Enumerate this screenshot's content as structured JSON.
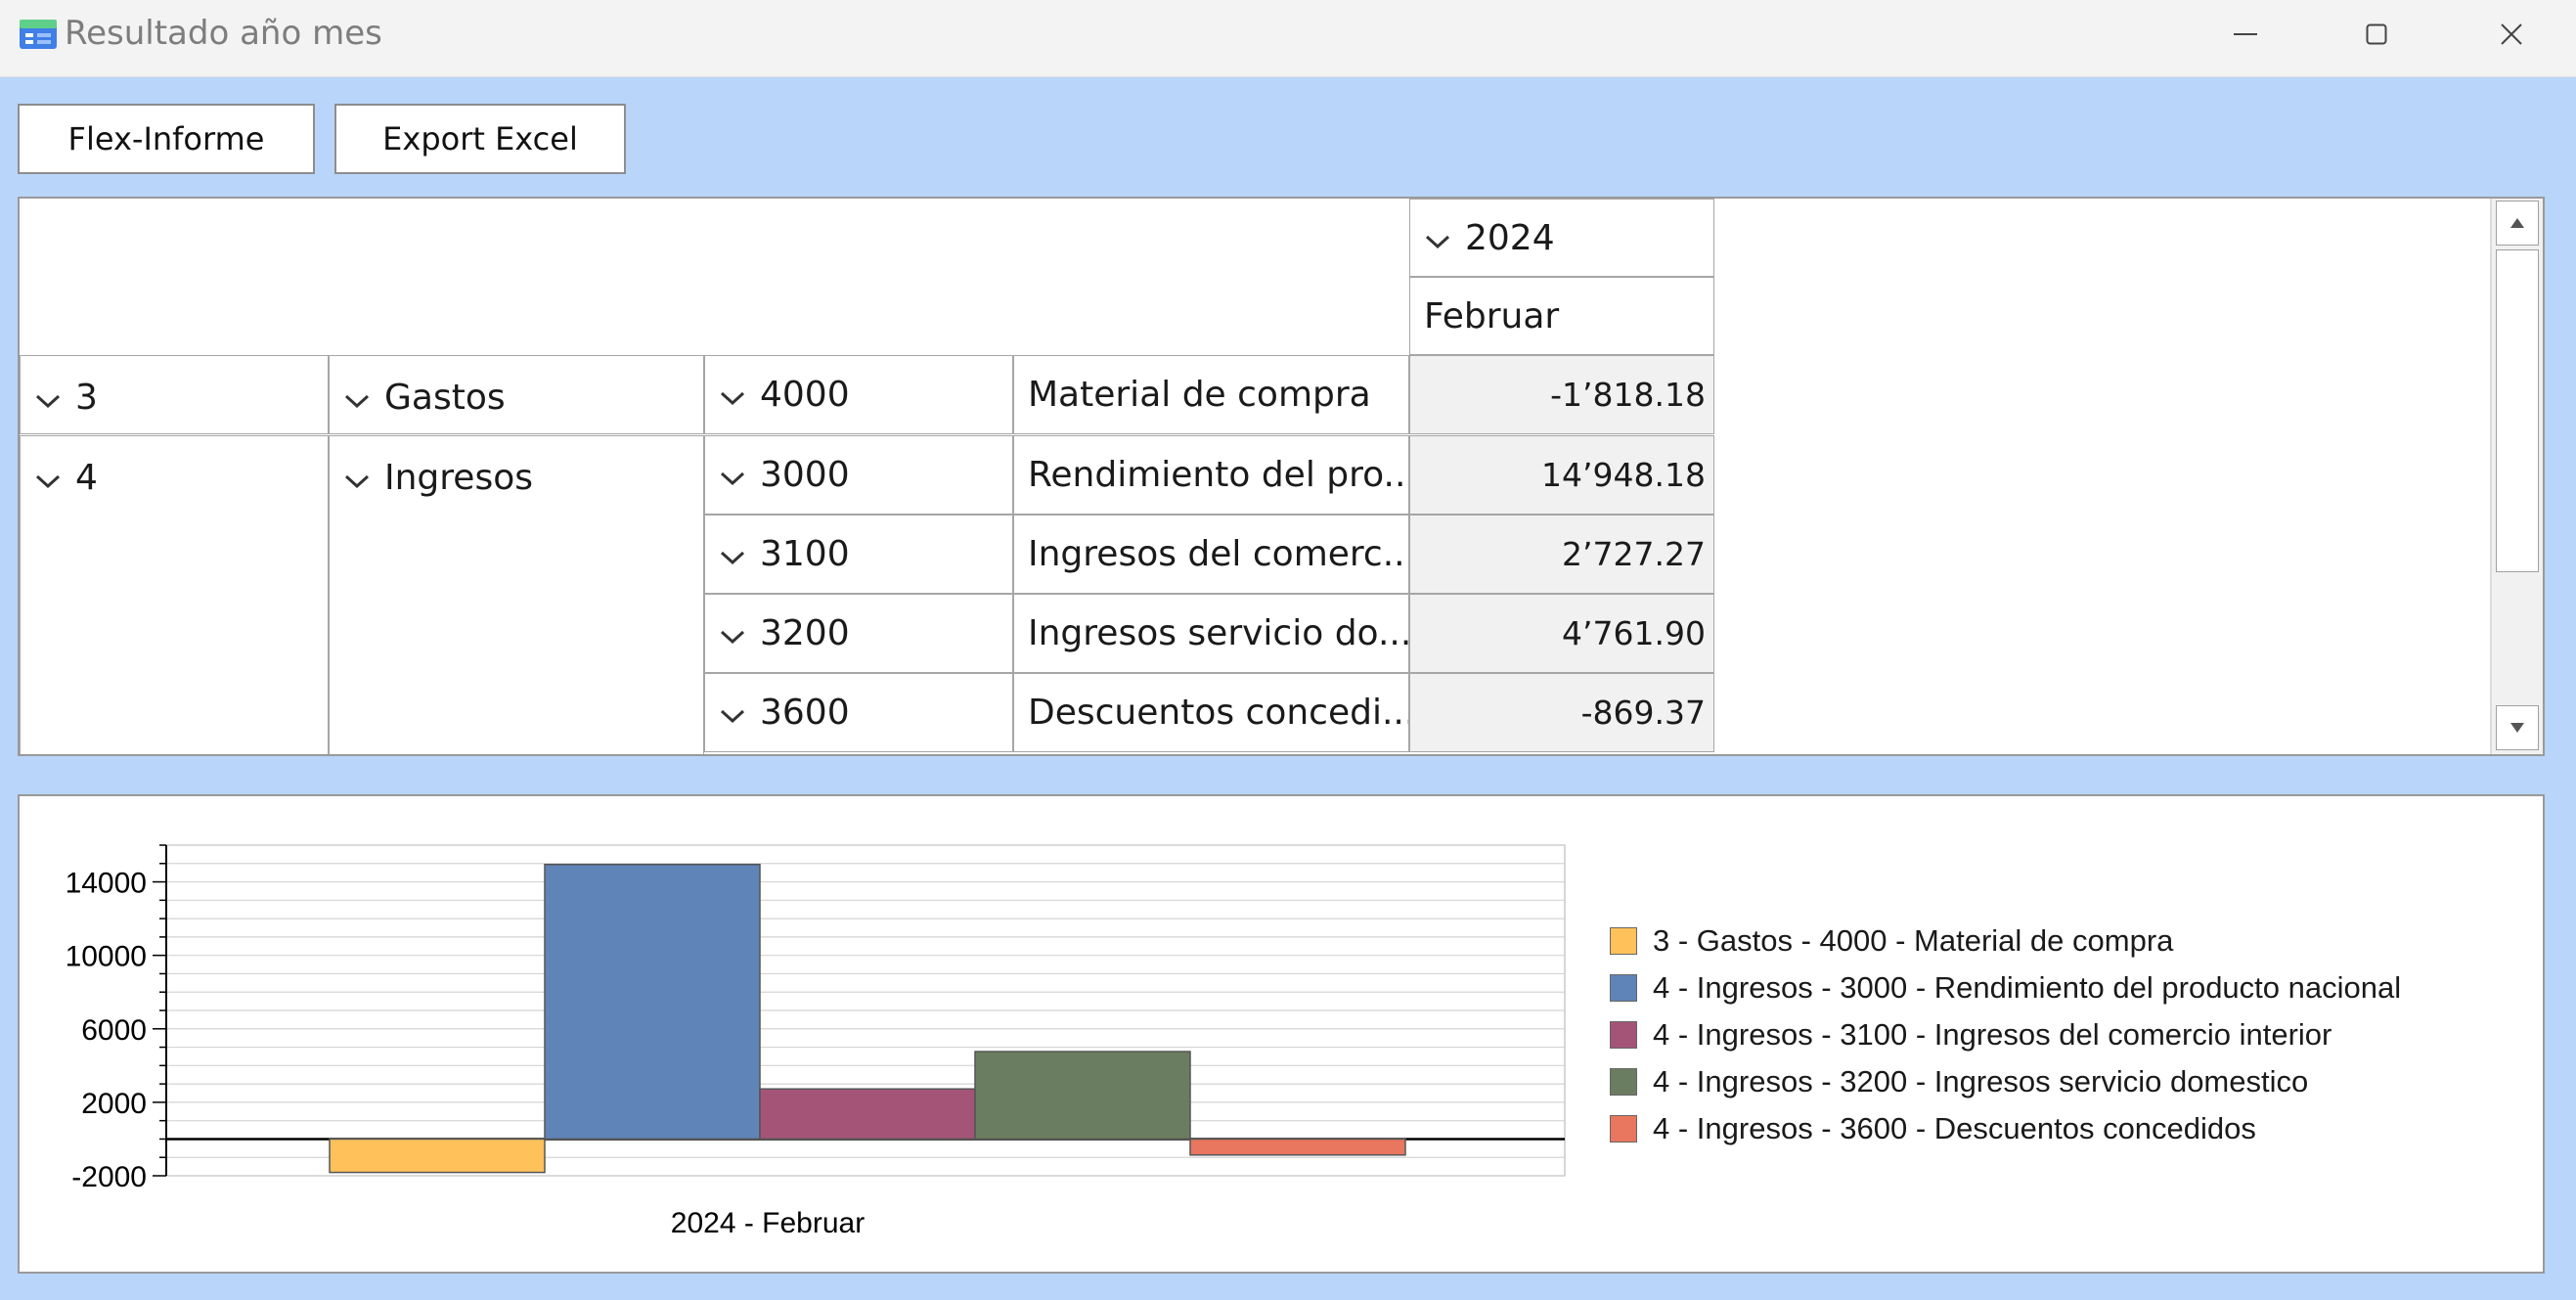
{
  "window": {
    "title": "Resultado año mes",
    "icon": "app-table-icon",
    "controls": [
      "minimize-icon",
      "maximize-icon",
      "close-icon"
    ]
  },
  "toolbar": {
    "flex_label": "Flex-Informe",
    "export_label": "Export Excel"
  },
  "grid": {
    "year": "2024",
    "month": "Februar",
    "rows": [
      {
        "group": "3",
        "type": "Gastos",
        "account": "4000",
        "name": "Material de compra",
        "value": "-1’818.18"
      },
      {
        "group": "4",
        "type": "Ingresos",
        "account": "3000",
        "name": "Rendimiento del pro...",
        "value": "14’948.18"
      },
      {
        "group": "",
        "type": "",
        "account": "3100",
        "name": "Ingresos del comerc...",
        "value": "2’727.27"
      },
      {
        "group": "",
        "type": "",
        "account": "3200",
        "name": "Ingresos servicio do...",
        "value": "4’761.90"
      },
      {
        "group": "",
        "type": "",
        "account": "3600",
        "name": "Descuentos concedi...",
        "value": "-869.37"
      }
    ]
  },
  "chart_data": {
    "type": "bar",
    "categories": [
      "2024 - Februar"
    ],
    "series": [
      {
        "name": "3 - Gastos - 4000 - Material de compra",
        "values": [
          -1818.18
        ],
        "color": "#ffc15a"
      },
      {
        "name": "4 - Ingresos - 3000 - Rendimiento del producto nacional",
        "values": [
          14948.18
        ],
        "color": "#5f84b7"
      },
      {
        "name": "4 - Ingresos - 3100 - Ingresos del comercio interior",
        "values": [
          2727.27
        ],
        "color": "#a45577"
      },
      {
        "name": "4 - Ingresos - 3200 - Ingresos servicio domestico",
        "values": [
          4761.9
        ],
        "color": "#6b7d60"
      },
      {
        "name": "4 - Ingresos - 3600 - Descuentos concedidos",
        "values": [
          -869.37
        ],
        "color": "#e9765e"
      }
    ],
    "yticks": [
      "14000",
      "10000",
      "6000",
      "2000",
      "-2000"
    ],
    "ylim": [
      -2000,
      16000
    ],
    "xlabel": "2024 - Februar",
    "grid": true,
    "legend_position": "right"
  }
}
